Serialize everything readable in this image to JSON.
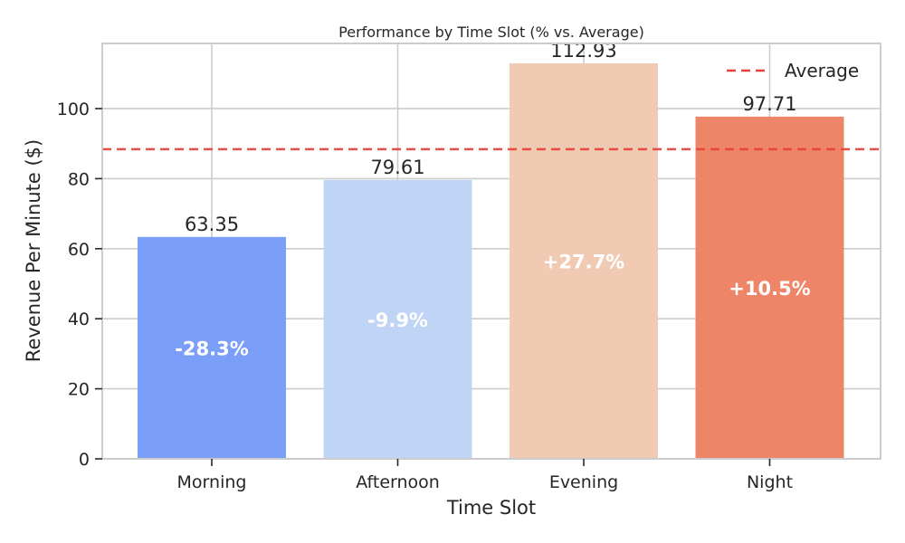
{
  "chart_data": {
    "type": "bar",
    "title": "Performance by Time Slot (% vs. Average)",
    "xlabel": "Time Slot",
    "ylabel": "Revenue Per Minute ($)",
    "categories": [
      "Morning",
      "Afternoon",
      "Evening",
      "Night"
    ],
    "values": [
      63.35,
      79.61,
      112.93,
      97.71
    ],
    "value_labels": [
      "63.35",
      "79.61",
      "112.93",
      "97.71"
    ],
    "percent_labels": [
      "-28.3%",
      "-9.9%",
      "+27.7%",
      "+10.5%"
    ],
    "bar_colors": [
      "#7b9ff9",
      "#c0d4f5",
      "#f1cab4",
      "#ee8468"
    ],
    "average": 88.4,
    "average_label": "Average",
    "average_color": "#e8453c",
    "ylim": [
      0,
      118.6
    ],
    "yticks": [
      0,
      20,
      40,
      60,
      80,
      100
    ],
    "grid": true,
    "legend_position": "top-right"
  }
}
